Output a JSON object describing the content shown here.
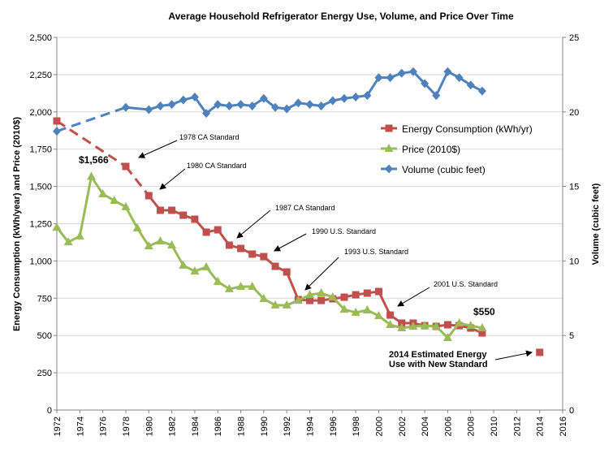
{
  "chart_data": {
    "type": "line",
    "title": "Average Household Refrigerator Energy Use, Volume, and Price Over Time",
    "ylabel": "Energy Consumption (kWh/year) and Price (2010$)",
    "y2label": "Volume (cubic feet)",
    "xlim": [
      1972,
      2016
    ],
    "ylim": [
      0,
      2500
    ],
    "y2lim": [
      0,
      25
    ],
    "xticks": [
      "1972",
      "1974",
      "1976",
      "1978",
      "1980",
      "1982",
      "1984",
      "1986",
      "1988",
      "1990",
      "1992",
      "1994",
      "1996",
      "1998",
      "2000",
      "2002",
      "2004",
      "2006",
      "2008",
      "2010",
      "2012",
      "2014",
      "2016"
    ],
    "yticks": [
      "0",
      "250",
      "500",
      "750",
      "1,000",
      "1,250",
      "1,500",
      "1,750",
      "2,000",
      "2,250",
      "2,500"
    ],
    "y2ticks": [
      "0",
      "5",
      "10",
      "15",
      "20",
      "25"
    ],
    "grid": "horizontal",
    "legend": "center-right",
    "series": [
      {
        "name": "Energy Consumption (kWh/yr)",
        "color": "#c0504d",
        "marker": "square",
        "axis": "left",
        "dashed_until": 1980,
        "x": [
          1972,
          1978,
          1980,
          1981,
          1982,
          1983,
          1984,
          1985,
          1986,
          1987,
          1988,
          1989,
          1990,
          1991,
          1992,
          1993,
          1994,
          1995,
          1996,
          1997,
          1998,
          1999,
          2000,
          2001,
          2002,
          2003,
          2004,
          2005,
          2006,
          2007,
          2008,
          2009
        ],
        "y": [
          1939,
          1634,
          1438,
          1340,
          1340,
          1307,
          1280,
          1193,
          1209,
          1106,
          1084,
          1046,
          1029,
          964,
          926,
          741,
          735,
          735,
          746,
          757,
          773,
          784,
          795,
          637,
          583,
          583,
          566,
          561,
          572,
          566,
          550,
          517
        ]
      },
      {
        "name": "Price (2010$)",
        "color": "#9bbb59",
        "marker": "triangle",
        "axis": "left",
        "x": [
          1972,
          1973,
          1974,
          1975,
          1976,
          1977,
          1978,
          1979,
          1980,
          1981,
          1982,
          1983,
          1984,
          1985,
          1986,
          1987,
          1988,
          1989,
          1990,
          1991,
          1992,
          1993,
          1994,
          1995,
          1996,
          1997,
          1998,
          1999,
          2000,
          2001,
          2002,
          2003,
          2004,
          2005,
          2006,
          2007,
          2008,
          2009
        ],
        "y": [
          1225,
          1127,
          1166,
          1566,
          1449,
          1405,
          1362,
          1220,
          1100,
          1133,
          1106,
          970,
          931,
          959,
          861,
          812,
          828,
          828,
          746,
          703,
          703,
          735,
          773,
          784,
          757,
          675,
          654,
          670,
          632,
          572,
          550,
          561,
          566,
          561,
          485,
          583,
          566,
          550
        ]
      },
      {
        "name": "Volume (cubic feet)",
        "color": "#4f81bd",
        "marker": "diamond",
        "axis": "right",
        "dashed_until": 1978,
        "x": [
          1972,
          1978,
          1980,
          1981,
          1982,
          1983,
          1984,
          1985,
          1986,
          1987,
          1988,
          1989,
          1990,
          1991,
          1992,
          1993,
          1994,
          1995,
          1996,
          1997,
          1998,
          1999,
          2000,
          2001,
          2002,
          2003,
          2004,
          2005,
          2006,
          2007,
          2008,
          2009
        ],
        "y": [
          18.7,
          20.3,
          20.15,
          20.4,
          20.5,
          20.8,
          21.0,
          19.9,
          20.5,
          20.4,
          20.5,
          20.4,
          20.9,
          20.3,
          20.2,
          20.6,
          20.5,
          20.4,
          20.75,
          20.9,
          21.0,
          21.1,
          22.3,
          22.3,
          22.6,
          22.7,
          21.9,
          21.1,
          22.7,
          22.3,
          21.8,
          21.4
        ]
      }
    ],
    "extra_point": {
      "series": "Energy Consumption (kWh/yr)",
      "x": 2014,
      "y": 387
    },
    "annotations": [
      "1978 CA Standard",
      "1980 CA Standard",
      "1987 CA Standard",
      "1990 U.S. Standard",
      "1993 U.S. Standard",
      "2001 U.S. Standard"
    ],
    "price_labels": [
      "$1,566",
      "$550"
    ],
    "estimate_label": [
      "2014 Estimated Energy",
      "Use with New Standard"
    ]
  }
}
